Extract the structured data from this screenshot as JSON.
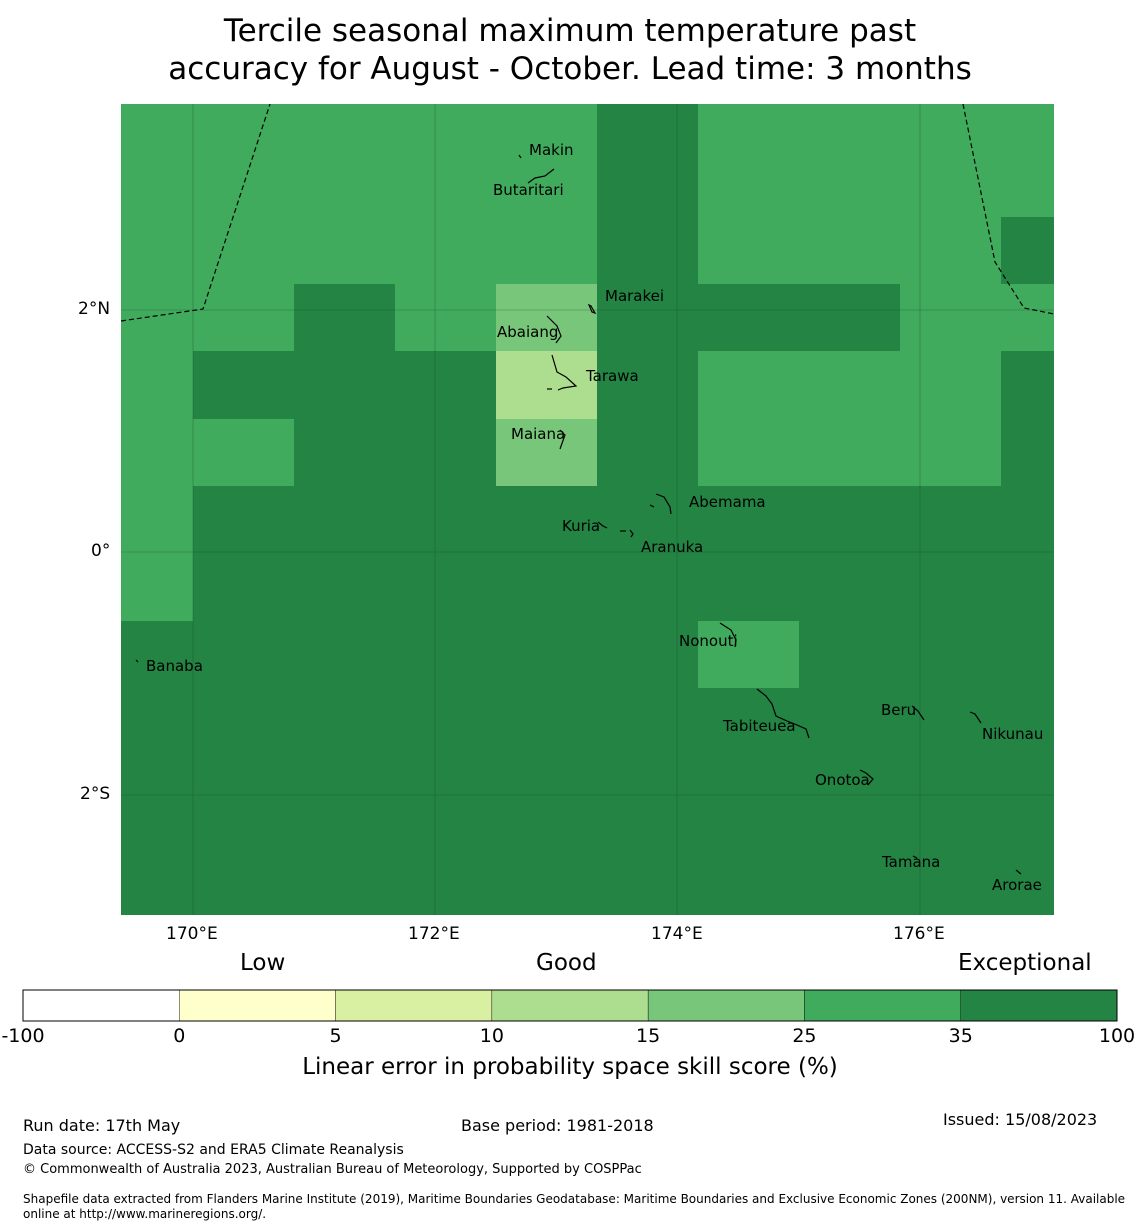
{
  "title": {
    "line1": "Tercile seasonal maximum temperature past",
    "line2": "accuracy for August - October. Lead time: 3 months"
  },
  "map": {
    "lon_range": [
      169.4,
      177.1
    ],
    "lat_range": [
      -3.0,
      3.7
    ],
    "lon_ticks": [
      {
        "value": 170,
        "label": "170°E"
      },
      {
        "value": 172,
        "label": "172°E"
      },
      {
        "value": 174,
        "label": "174°E"
      },
      {
        "value": 176,
        "label": "176°E"
      }
    ],
    "lat_ticks": [
      {
        "value": 2,
        "label": "2°N"
      },
      {
        "value": 0,
        "label": "0°"
      },
      {
        "value": -2,
        "label": "2°S"
      }
    ],
    "islands": [
      {
        "name": "Makin",
        "lon": 172.95,
        "lat": 3.33
      },
      {
        "name": "Butaritari",
        "lon": 172.85,
        "lat": 3.08
      },
      {
        "name": "Marakei",
        "lon": 173.35,
        "lat": 2.01
      },
      {
        "name": "Abaiang",
        "lon": 173.05,
        "lat": 1.82
      },
      {
        "name": "Tarawa",
        "lon": 173.1,
        "lat": 1.42
      },
      {
        "name": "Maiana",
        "lon": 173.0,
        "lat": 0.92
      },
      {
        "name": "Abemama",
        "lon": 173.85,
        "lat": 0.4
      },
      {
        "name": "Kuria",
        "lon": 173.38,
        "lat": 0.22
      },
      {
        "name": "Aranuka",
        "lon": 173.62,
        "lat": 0.17
      },
      {
        "name": "Nonouti",
        "lon": 174.45,
        "lat": -0.7
      },
      {
        "name": "Banaba",
        "lon": 169.53,
        "lat": -0.89
      },
      {
        "name": "Tabiteuea",
        "lon": 174.8,
        "lat": -1.3
      },
      {
        "name": "Beru",
        "lon": 176.0,
        "lat": -1.3
      },
      {
        "name": "Nikunau",
        "lon": 176.45,
        "lat": -1.35
      },
      {
        "name": "Onotoa",
        "lon": 175.55,
        "lat": -1.8
      },
      {
        "name": "Tamana",
        "lon": 175.98,
        "lat": -2.5
      },
      {
        "name": "Arorae",
        "lon": 176.82,
        "lat": -2.64
      }
    ]
  },
  "categories": {
    "low": "Low",
    "good": "Good",
    "exceptional": "Exceptional"
  },
  "colorbar": {
    "bounds": [
      "-100",
      "0",
      "5",
      "10",
      "15",
      "25",
      "35",
      "100"
    ],
    "colors": [
      "#ffffff",
      "#ffffcc",
      "#d9f0a3",
      "#addd8e",
      "#78c679",
      "#41ab5d",
      "#238443"
    ],
    "label": "Linear error in probability space skill score (%)"
  },
  "footer": {
    "run_date": "Run date: 17th May",
    "base_period": "Base period: 1981-2018",
    "issued": "Issued: 15/08/2023",
    "data_source": "Data source: ACCESS-S2 and ERA5 Climate Reanalysis",
    "copyright": "© Commonwealth of Australia 2023, Australian Bureau of Meteorology, Supported by COSPPac",
    "shapefile": "Shapefile data extracted from Flanders Marine Institute (2019), Maritime Boundaries Geodatabase: Maritime Boundaries and Exclusive Economic Zones (200NM), version 11. Available online at http://www.marineregions.org/."
  }
}
